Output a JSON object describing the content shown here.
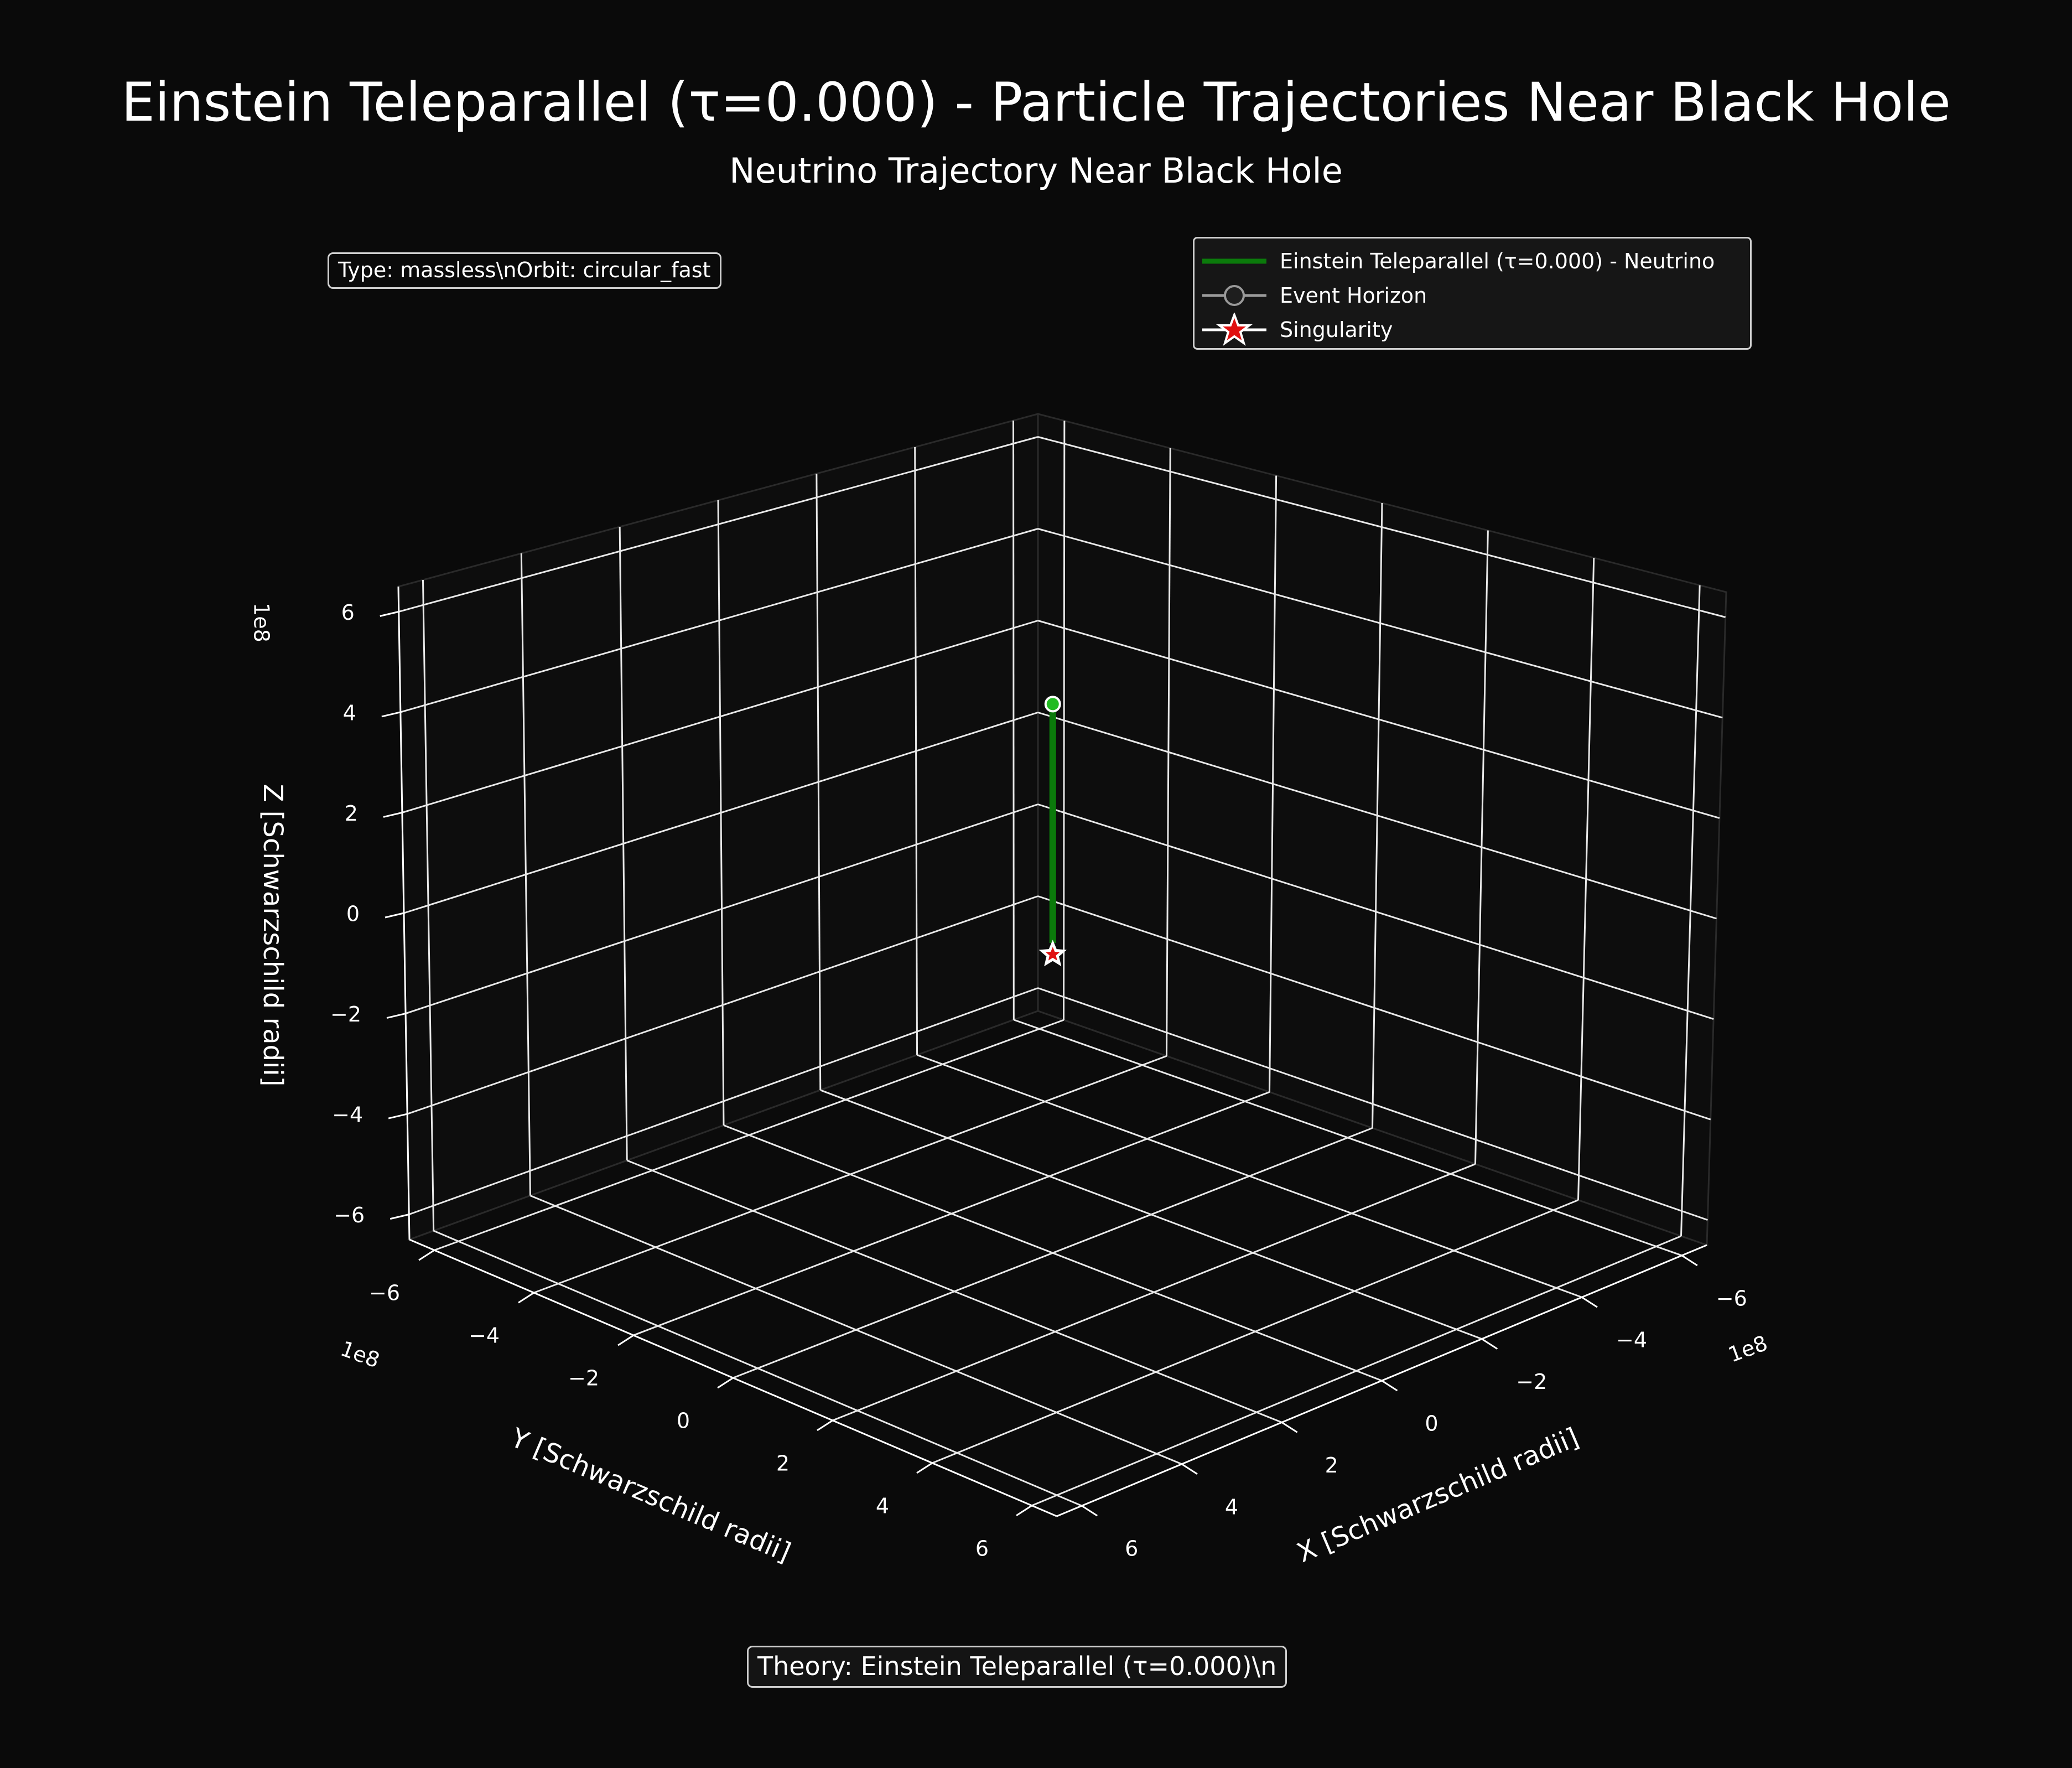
{
  "figure": {
    "suptitle": "Einstein Teleparallel (τ=0.000) - Particle Trajectories Near Black Hole",
    "title": "Neutrino Trajectory Near Black Hole",
    "info_box": "Type: massless\\nOrbit: circular_fast",
    "theory_box": "Theory: Einstein Teleparallel (τ=0.000)\\n",
    "background": "#0a0a0a"
  },
  "legend": {
    "entries": [
      {
        "label": "Einstein Teleparallel (τ=0.000) - Neutrino",
        "marker": "line",
        "color": "#0b7a0b"
      },
      {
        "label": "Event Horizon",
        "marker": "circle-line",
        "color": "#9a9a9a"
      },
      {
        "label": "Singularity",
        "marker": "star",
        "color": "#e01010"
      }
    ]
  },
  "chart_data": {
    "type": "line3d",
    "xlabel": "X [Schwarzschild radii]",
    "ylabel": "Y [Schwarzschild radii]",
    "zlabel": "Z [Schwarzschild radii]",
    "offset_text": "1e8",
    "xlim": [
      -6.5,
      6.5
    ],
    "ylim": [
      -6.5,
      6.5
    ],
    "zlim": [
      -6.5,
      6.5
    ],
    "ticks": [
      "−6",
      "−4",
      "−2",
      "0",
      "2",
      "4",
      "6"
    ],
    "tick_values": [
      -6,
      -4,
      -2,
      0,
      2,
      4,
      6
    ],
    "grid": true,
    "series": [
      {
        "name": "Einstein Teleparallel (τ=0.000) - Neutrino",
        "color": "#0b7a0b",
        "x": [
          0,
          0
        ],
        "y": [
          0,
          0
        ],
        "z": [
          0.25,
          5.45
        ],
        "start_marker_color": "#22bb22"
      }
    ],
    "singularity": {
      "name": "Singularity",
      "x": 0,
      "y": 0,
      "z": 0,
      "color": "#e01010"
    }
  }
}
